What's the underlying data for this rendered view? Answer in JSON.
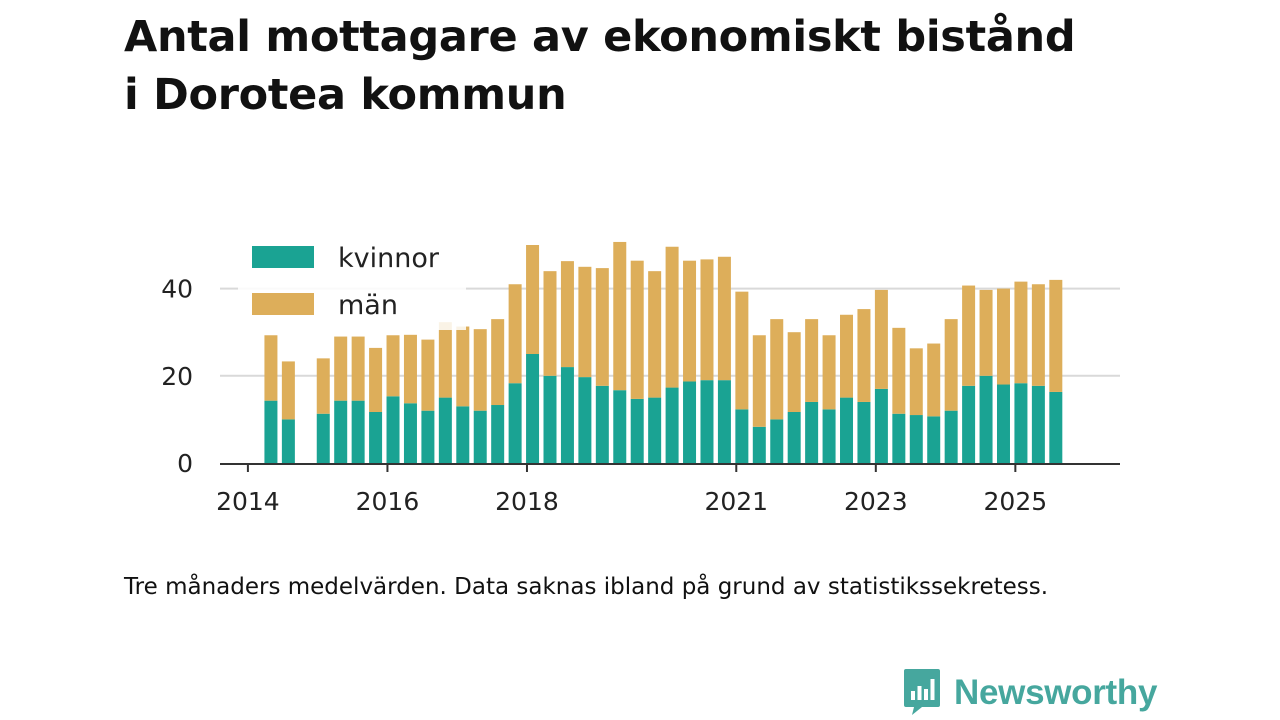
{
  "title_lines": [
    "Antal mottagare av ekonomiskt bistånd",
    "i Dorotea kommun"
  ],
  "caption": "Tre månaders medelvärden. Data saknas ibland på grund av statistikssekretess.",
  "brand": {
    "name": "Newsworthy",
    "icon": "newsworthy-logo-icon",
    "color": "#46a79e"
  },
  "chart_data": {
    "type": "bar",
    "stacked": true,
    "title": "Antal mottagare av ekonomiskt bistånd i Dorotea kommun",
    "xlabel": "",
    "ylabel": "",
    "ylim": [
      0,
      52
    ],
    "yticks": [
      0,
      20,
      40
    ],
    "x_range": [
      2013.6,
      2026.5
    ],
    "xticks": [
      "2014",
      "2016",
      "2018",
      "2021",
      "2023",
      "2025"
    ],
    "xtick_values": [
      2014,
      2016,
      2018,
      2021,
      2023,
      2025
    ],
    "grid": true,
    "legend_position": "top-left",
    "colors": {
      "kvinnor": "#1aa393",
      "män": "#ddae5a"
    },
    "x": [
      2014.33,
      2014.58,
      2015.08,
      2015.33,
      2015.58,
      2015.83,
      2016.08,
      2016.33,
      2016.58,
      2016.83,
      2017.08,
      2017.33,
      2017.58,
      2017.83,
      2018.08,
      2018.33,
      2018.58,
      2018.83,
      2019.08,
      2019.33,
      2019.58,
      2019.83,
      2020.08,
      2020.33,
      2020.58,
      2020.83,
      2021.08,
      2021.33,
      2021.58,
      2021.83,
      2022.08,
      2022.33,
      2022.58,
      2022.83,
      2023.08,
      2023.33,
      2023.58,
      2023.83,
      2024.08,
      2024.33,
      2024.58,
      2024.83,
      2025.08,
      2025.33,
      2025.58
    ],
    "series": [
      {
        "name": "kvinnor",
        "values": [
          14.3,
          10,
          11.3,
          14.3,
          14.3,
          11.7,
          15.3,
          13.7,
          12,
          15,
          13,
          12,
          13.3,
          18.3,
          25,
          20,
          22,
          19.7,
          17.7,
          16.7,
          14.7,
          15,
          17.3,
          18.7,
          19,
          19,
          12.3,
          8.3,
          10,
          11.7,
          14,
          12.3,
          15,
          14,
          17,
          11.3,
          11,
          10.7,
          12,
          17.7,
          20,
          18,
          18.3,
          17.7,
          16.3
        ]
      },
      {
        "name": "män",
        "values": [
          15,
          13.3,
          12.7,
          14.7,
          14.7,
          14.7,
          14,
          15.7,
          16.3,
          17.3,
          18.3,
          18.7,
          19.7,
          22.7,
          25,
          24,
          24.3,
          25.3,
          27,
          34,
          31.7,
          29,
          32.3,
          27.7,
          27.7,
          28.3,
          27,
          21,
          23,
          18.3,
          19,
          17,
          19,
          21.3,
          22.7,
          19.7,
          15.3,
          16.7,
          21,
          23,
          19.7,
          22,
          23.3,
          23.3,
          25.7
        ]
      }
    ]
  }
}
